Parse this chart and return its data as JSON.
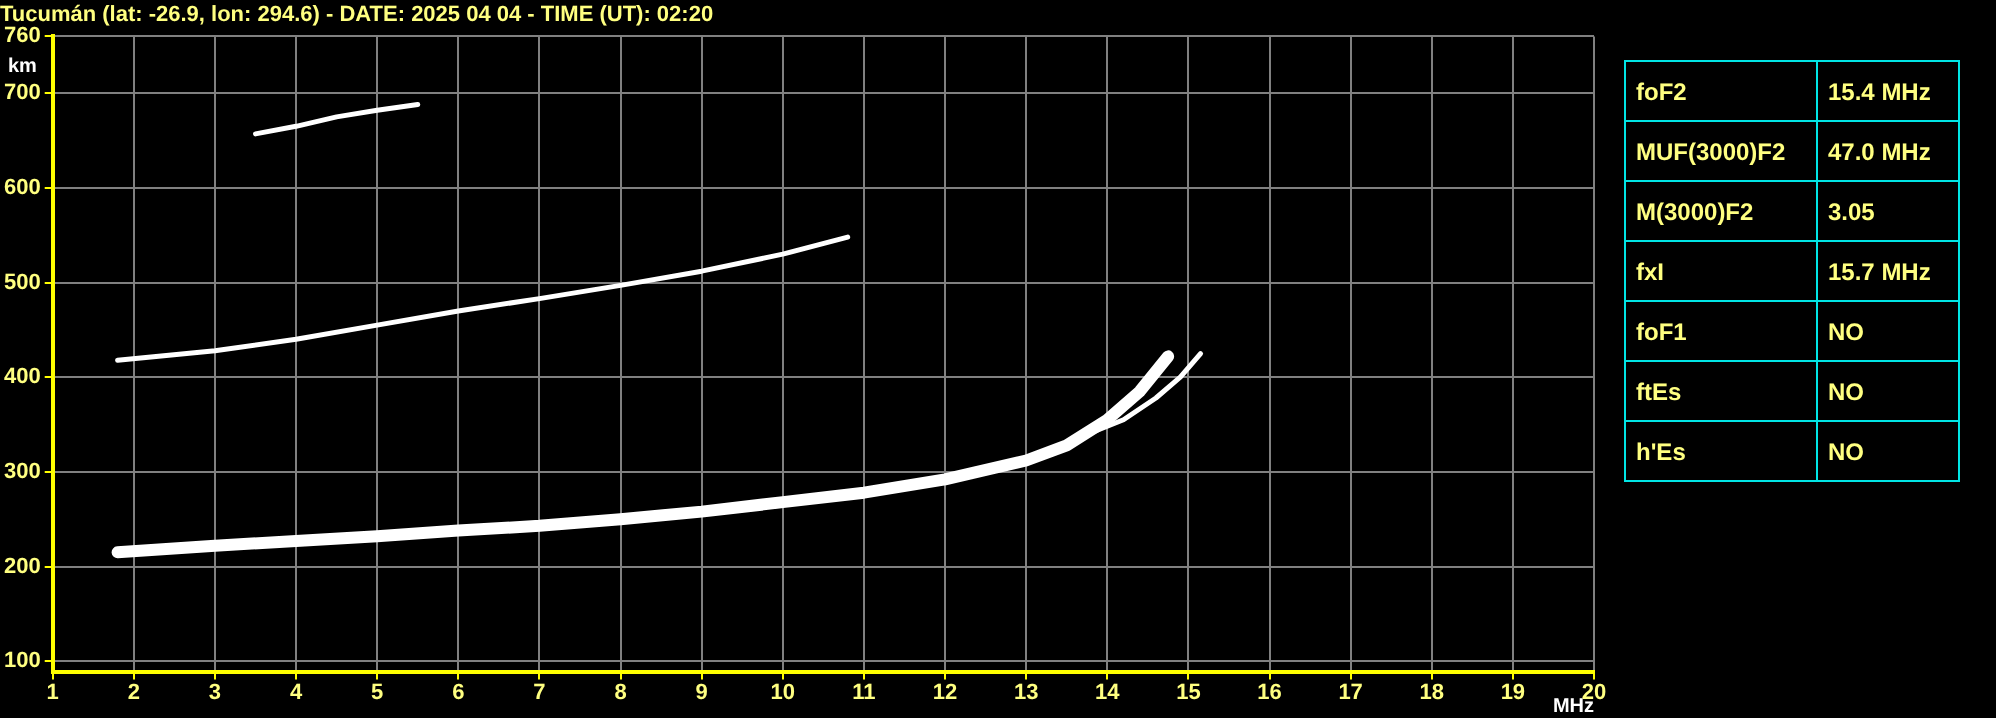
{
  "chart_data": {
    "type": "line",
    "title": "Tucumán (lat: -26.9, lon: 294.6) - DATE: 2025 04 04 - TIME (UT): 02:20",
    "xlabel": "MHz",
    "ylabel": "km",
    "xlim": [
      1,
      20
    ],
    "xticks": [
      1,
      2,
      3,
      4,
      5,
      6,
      7,
      8,
      9,
      10,
      11,
      12,
      13,
      14,
      15,
      16,
      17,
      18,
      19,
      20
    ],
    "ylim": [
      89,
      760
    ],
    "yticks": [
      100,
      200,
      300,
      400,
      500,
      600,
      700,
      760
    ],
    "grid": true,
    "marker": "none",
    "line_style": "solid",
    "legend": false,
    "series": [
      {
        "color": "#ffffff",
        "x": [
          1.8,
          3,
          4,
          5,
          6,
          7,
          8,
          9,
          10,
          11,
          12,
          13,
          13.5,
          14,
          14.4,
          14.75
        ],
        "values": [
          215,
          222,
          227,
          232,
          238,
          243,
          250,
          258,
          268,
          278,
          292,
          312,
          328,
          355,
          385,
          422
        ]
      },
      {
        "color": "#ffffff",
        "x": [
          13.7,
          14.2,
          14.6,
          14.9,
          15.15
        ],
        "values": [
          338,
          355,
          378,
          400,
          425
        ]
      },
      {
        "color": "#ffffff",
        "x": [
          1.8,
          3,
          4,
          5,
          6,
          7,
          8,
          9,
          10,
          10.8
        ],
        "values": [
          418,
          428,
          440,
          455,
          470,
          483,
          497,
          512,
          530,
          548
        ]
      },
      {
        "color": "#ffffff",
        "x": [
          3.5,
          4,
          4.5,
          5,
          5.5
        ],
        "values": [
          657,
          665,
          675,
          682,
          688
        ]
      }
    ],
    "annotations": [
      "foF2",
      "15.4 MHz",
      "MUF(3000)F2",
      "47.0 MHz",
      "M(3000)F2",
      "3.05",
      "fxI",
      "15.7 MHz",
      "foF1",
      "NO",
      "ftEs",
      "NO",
      "h'Es",
      "NO"
    ]
  }
}
